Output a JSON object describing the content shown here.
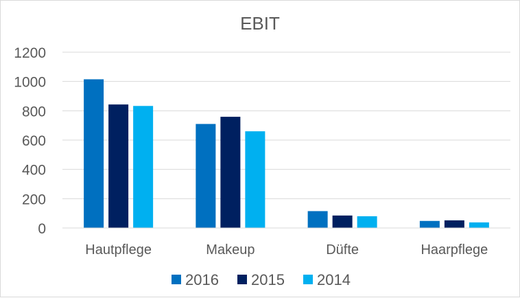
{
  "chart_data": {
    "type": "bar",
    "title": "EBIT",
    "xlabel": "",
    "ylabel": "",
    "categories": [
      "Hautpflege",
      "Makeup",
      "Düfte",
      "Haarpflege"
    ],
    "series": [
      {
        "name": "2016",
        "color": "#0070c0",
        "values": [
          1015,
          710,
          115,
          48
        ]
      },
      {
        "name": "2015",
        "color": "#002060",
        "values": [
          843,
          759,
          85,
          52
        ]
      },
      {
        "name": "2014",
        "color": "#00b0f0",
        "values": [
          833,
          660,
          80,
          38
        ]
      }
    ],
    "yticks": [
      "0",
      "200",
      "400",
      "600",
      "800",
      "1000",
      "1200"
    ],
    "ylim": [
      0,
      1200
    ],
    "grid": true,
    "legend": "bottom"
  }
}
